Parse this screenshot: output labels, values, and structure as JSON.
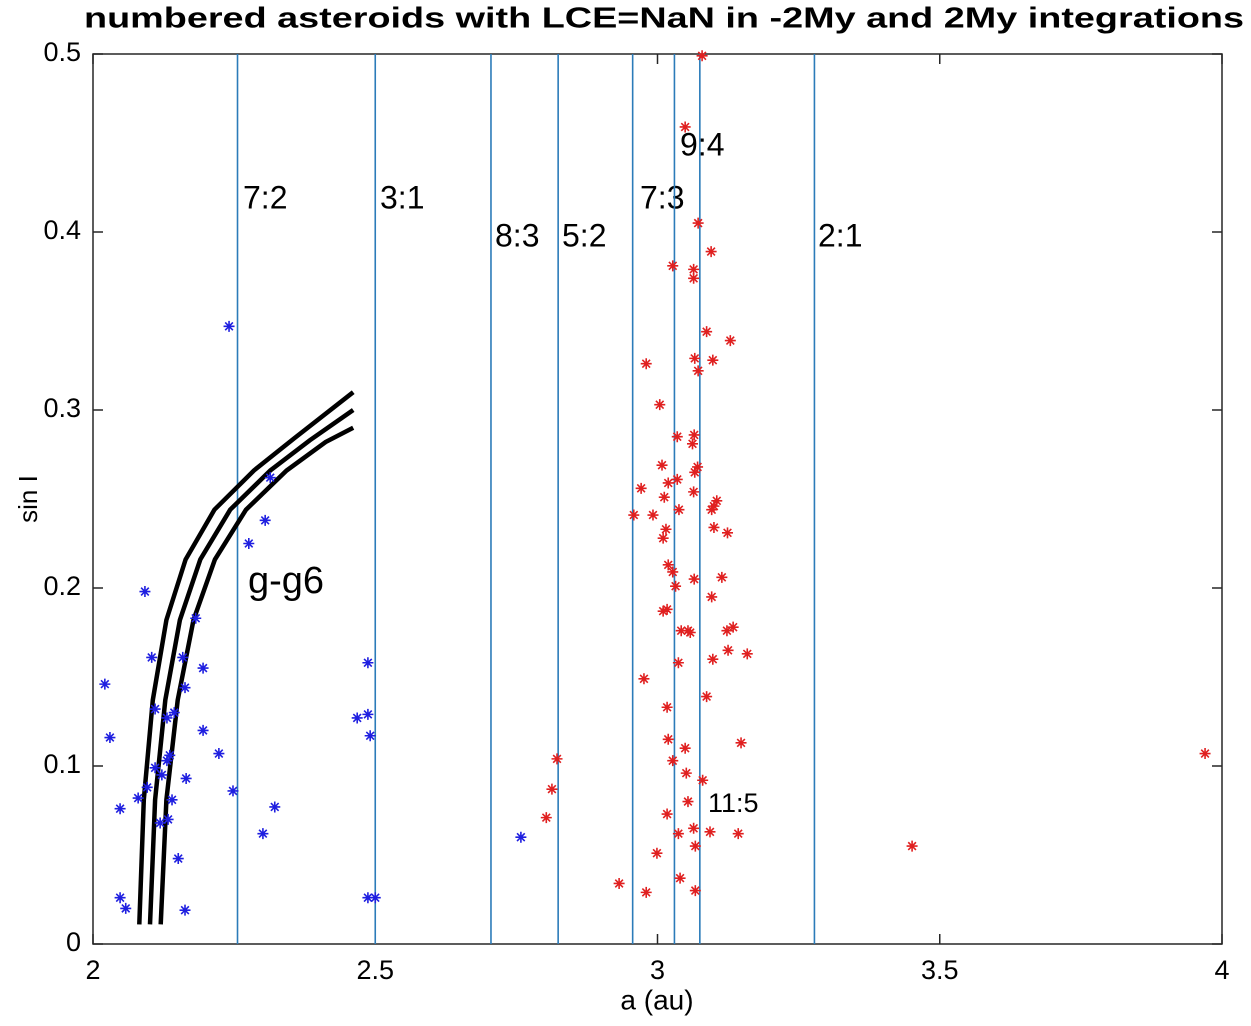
{
  "chart_data": {
    "type": "scatter",
    "title": "numbered asteroids with LCE=NaN in -2My and 2My integrations",
    "xlabel": "a (au)",
    "ylabel": "sin I",
    "xlim": [
      2,
      4
    ],
    "ylim": [
      0,
      0.5
    ],
    "xticks": [
      2,
      2.5,
      3,
      3.5,
      4
    ],
    "yticks": [
      0,
      0.1,
      0.2,
      0.3,
      0.4,
      0.5
    ],
    "resonance_color": "#2b7bb9",
    "resonances": [
      {
        "label": "7:2",
        "x": 2.256
      },
      {
        "label": "3:1",
        "x": 2.5
      },
      {
        "label": "8:3",
        "x": 2.705
      },
      {
        "label": "5:2",
        "x": 2.824
      },
      {
        "label": "7:3",
        "x": 2.956
      },
      {
        "label": "11:5",
        "x": 3.03
      },
      {
        "label": "9:4",
        "x": 3.075
      },
      {
        "label": "2:1",
        "x": 3.278
      }
    ],
    "curves": {
      "label": "g-g6",
      "color": "#000000",
      "lines": [
        {
          "x": [
            2.082,
            2.09,
            2.106,
            2.13,
            2.164,
            2.215,
            2.285,
            2.356,
            2.461
          ],
          "y": [
            0.011,
            0.081,
            0.137,
            0.182,
            0.216,
            0.244,
            0.266,
            0.284,
            0.31
          ]
        },
        {
          "x": [
            2.101,
            2.11,
            2.128,
            2.154,
            2.19,
            2.243,
            2.314,
            2.384,
            2.461
          ],
          "y": [
            0.011,
            0.081,
            0.137,
            0.182,
            0.216,
            0.244,
            0.266,
            0.283,
            0.3
          ]
        },
        {
          "x": [
            2.12,
            2.13,
            2.15,
            2.178,
            2.216,
            2.271,
            2.343,
            2.412,
            2.461
          ],
          "y": [
            0.011,
            0.081,
            0.137,
            0.182,
            0.216,
            0.244,
            0.266,
            0.282,
            0.29
          ]
        }
      ]
    },
    "series": [
      {
        "color": "#1f1fe0",
        "x": [
          2.021,
          2.03,
          2.048,
          2.048,
          2.058,
          2.08,
          2.092,
          2.096,
          2.104,
          2.11,
          2.11,
          2.119,
          2.122,
          2.131,
          2.131,
          2.133,
          2.136,
          2.14,
          2.144,
          2.151,
          2.159,
          2.163,
          2.163,
          2.165,
          2.182,
          2.195,
          2.195,
          2.223,
          2.241,
          2.248,
          2.276,
          2.301,
          2.305,
          2.314,
          2.322,
          2.468,
          2.487,
          2.487,
          2.491,
          2.487,
          2.5,
          2.758
        ],
        "values": [
          0.146,
          0.116,
          0.076,
          0.026,
          0.02,
          0.082,
          0.198,
          0.088,
          0.161,
          0.132,
          0.099,
          0.068,
          0.095,
          0.127,
          0.103,
          0.07,
          0.106,
          0.081,
          0.13,
          0.048,
          0.161,
          0.019,
          0.144,
          0.093,
          0.183,
          0.155,
          0.12,
          0.107,
          0.347,
          0.086,
          0.225,
          0.062,
          0.238,
          0.262,
          0.077,
          0.127,
          0.158,
          0.129,
          0.117,
          0.026,
          0.026,
          0.06
        ]
      },
      {
        "color": "#e02020",
        "x": [
          3.079,
          3.049,
          3.072,
          3.095,
          3.027,
          3.064,
          3.064,
          3.087,
          3.129,
          2.98,
          3.066,
          3.098,
          3.072,
          3.004,
          3.035,
          3.065,
          3.062,
          3.071,
          3.008,
          3.066,
          3.019,
          3.035,
          2.971,
          3.012,
          3.064,
          3.105,
          3.1,
          3.096,
          3.038,
          2.958,
          2.992,
          3.015,
          3.1,
          3.124,
          3.01,
          3.019,
          3.027,
          3.114,
          3.065,
          3.032,
          3.096,
          3.017,
          3.01,
          3.123,
          3.134,
          3.042,
          3.054,
          3.058,
          3.125,
          3.159,
          3.098,
          3.037,
          2.976,
          3.087,
          3.017,
          3.019,
          3.148,
          3.049,
          3.027,
          3.051,
          3.08,
          2.822,
          2.813,
          2.803,
          3.054,
          3.017,
          3.064,
          3.093,
          3.143,
          3.037,
          3.067,
          2.999,
          3.04,
          2.932,
          2.98,
          3.067,
          3.451,
          3.97
        ],
        "values": [
          0.499,
          0.459,
          0.405,
          0.389,
          0.381,
          0.379,
          0.374,
          0.344,
          0.339,
          0.326,
          0.329,
          0.328,
          0.322,
          0.303,
          0.285,
          0.286,
          0.281,
          0.268,
          0.269,
          0.265,
          0.259,
          0.261,
          0.256,
          0.251,
          0.254,
          0.249,
          0.246,
          0.244,
          0.244,
          0.241,
          0.241,
          0.233,
          0.234,
          0.231,
          0.228,
          0.213,
          0.209,
          0.206,
          0.205,
          0.201,
          0.195,
          0.188,
          0.187,
          0.176,
          0.178,
          0.176,
          0.176,
          0.175,
          0.165,
          0.163,
          0.16,
          0.158,
          0.149,
          0.139,
          0.133,
          0.115,
          0.113,
          0.11,
          0.103,
          0.096,
          0.092,
          0.104,
          0.087,
          0.071,
          0.08,
          0.073,
          0.065,
          0.063,
          0.062,
          0.062,
          0.055,
          0.051,
          0.037,
          0.034,
          0.029,
          0.03,
          0.055,
          0.107
        ]
      }
    ]
  }
}
